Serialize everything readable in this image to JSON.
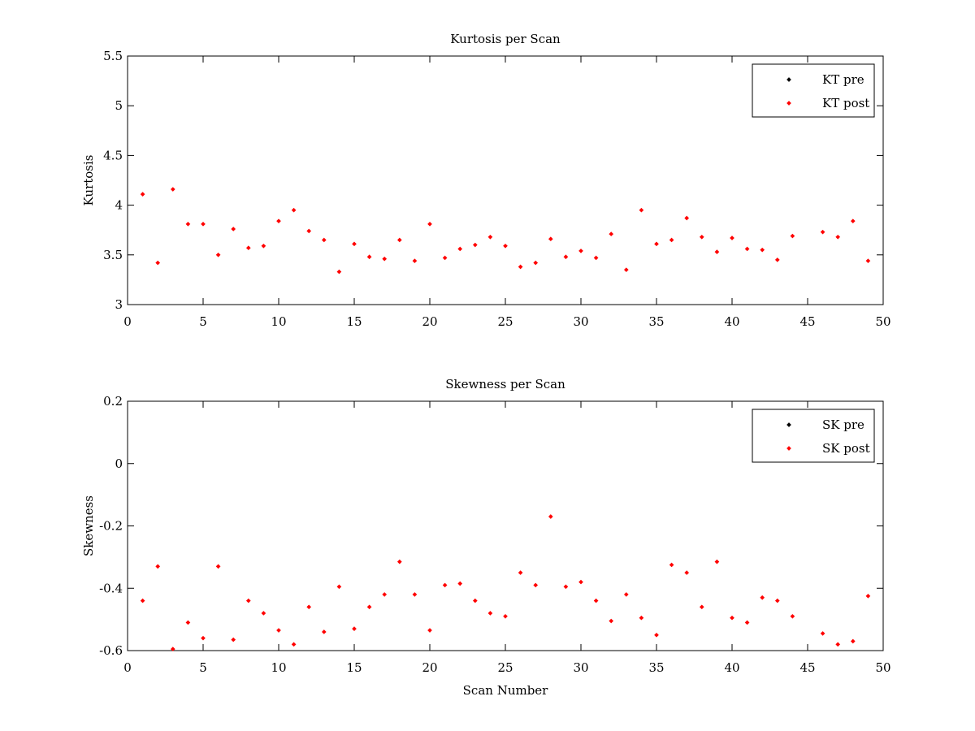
{
  "chart_data": [
    {
      "type": "scatter",
      "title": "Kurtosis per Scan",
      "xlabel": "",
      "ylabel": "Kurtosis",
      "xlim": [
        0,
        50
      ],
      "ylim": [
        3,
        5.5
      ],
      "xticks": [
        "0",
        "5",
        "10",
        "15",
        "20",
        "25",
        "30",
        "35",
        "40",
        "45",
        "50"
      ],
      "yticks": [
        "3",
        "3.5",
        "4",
        "4.5",
        "5",
        "5.5"
      ],
      "grid": false,
      "legend_position": "top-right",
      "series": [
        {
          "name": "KT pre",
          "color": "#000000",
          "x": [],
          "y": []
        },
        {
          "name": "KT post",
          "color": "#ff0000",
          "x": [
            1,
            2,
            3,
            4,
            5,
            6,
            7,
            8,
            9,
            10,
            11,
            12,
            13,
            14,
            15,
            16,
            17,
            18,
            19,
            20,
            21,
            22,
            23,
            24,
            25,
            26,
            27,
            28,
            29,
            30,
            31,
            32,
            33,
            34,
            35,
            36,
            37,
            38,
            39,
            40,
            41,
            42,
            43,
            44,
            46,
            47,
            48,
            49
          ],
          "y": [
            4.11,
            3.42,
            4.16,
            3.81,
            3.81,
            3.5,
            3.76,
            3.57,
            3.59,
            3.84,
            3.95,
            3.74,
            3.65,
            3.33,
            3.61,
            3.48,
            3.46,
            3.65,
            3.44,
            3.81,
            3.47,
            3.56,
            3.6,
            3.68,
            3.59,
            3.38,
            3.42,
            3.66,
            3.48,
            3.54,
            3.47,
            3.71,
            3.35,
            3.95,
            3.61,
            3.65,
            3.87,
            3.68,
            3.53,
            3.67,
            3.56,
            3.55,
            3.45,
            3.69,
            3.73,
            3.68,
            3.84,
            3.44
          ]
        }
      ]
    },
    {
      "type": "scatter",
      "title": "Skewness per Scan",
      "xlabel": "Scan Number",
      "ylabel": "Skewness",
      "xlim": [
        0,
        50
      ],
      "ylim": [
        -0.6,
        0.2
      ],
      "xticks": [
        "0",
        "5",
        "10",
        "15",
        "20",
        "25",
        "30",
        "35",
        "40",
        "45",
        "50"
      ],
      "yticks": [
        "-0.6",
        "-0.4",
        "-0.2",
        "0",
        "0.2"
      ],
      "grid": false,
      "legend_position": "top-right",
      "series": [
        {
          "name": "SK pre",
          "color": "#000000",
          "x": [],
          "y": []
        },
        {
          "name": "SK post",
          "color": "#ff0000",
          "x": [
            1,
            2,
            3,
            4,
            5,
            6,
            7,
            8,
            9,
            10,
            11,
            12,
            13,
            14,
            15,
            16,
            17,
            18,
            19,
            20,
            21,
            22,
            23,
            24,
            25,
            26,
            27,
            28,
            29,
            30,
            31,
            32,
            33,
            34,
            35,
            36,
            37,
            38,
            39,
            40,
            41,
            42,
            43,
            44,
            46,
            47,
            48,
            49
          ],
          "y": [
            -0.44,
            -0.33,
            -0.595,
            -0.51,
            -0.56,
            -0.33,
            -0.565,
            -0.44,
            -0.48,
            -0.535,
            -0.58,
            -0.46,
            -0.54,
            -0.395,
            -0.53,
            -0.46,
            -0.42,
            -0.315,
            -0.42,
            -0.535,
            -0.39,
            -0.385,
            -0.44,
            -0.48,
            -0.49,
            -0.35,
            -0.39,
            -0.17,
            -0.395,
            -0.38,
            -0.44,
            -0.505,
            -0.42,
            -0.495,
            -0.55,
            -0.325,
            -0.35,
            -0.46,
            -0.315,
            -0.495,
            -0.51,
            -0.43,
            -0.44,
            -0.49,
            -0.545,
            -0.58,
            -0.57,
            -0.425
          ]
        }
      ]
    }
  ]
}
